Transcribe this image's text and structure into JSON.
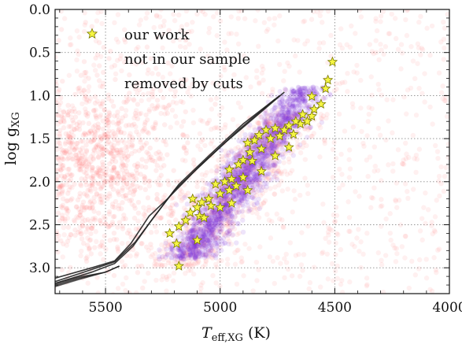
{
  "chart_data": {
    "type": "scatter",
    "title": "",
    "xlabel": {
      "main": "T",
      "sub": "eff,XG",
      "unit": "(K)"
    },
    "ylabel": {
      "main": "log g",
      "sub": "XG"
    },
    "xlim": [
      5720,
      4000
    ],
    "ylim": [
      3.3,
      0.0
    ],
    "x_inverted": true,
    "y_inverted": true,
    "grid": true,
    "grid_style": "dotted",
    "x_ticks": [
      5500,
      5000,
      4500,
      4000
    ],
    "y_ticks": [
      0.0,
      0.5,
      1.0,
      1.5,
      2.0,
      2.5,
      3.0
    ],
    "x_tick_labels": [
      "5500",
      "5000",
      "4500",
      "4000"
    ],
    "y_tick_labels": [
      "0.0",
      "0.5",
      "1.0",
      "1.5",
      "2.0",
      "2.5",
      "3.0"
    ],
    "legend_position": "top-left",
    "legend": [
      {
        "label": "our work",
        "marker": "star",
        "color": "#f5f542"
      },
      {
        "label": "not in our sample",
        "marker": "circle",
        "color": "#7b2fd6"
      },
      {
        "label": "removed by cuts",
        "marker": "circle",
        "color": "#ff6b6b"
      }
    ],
    "series": [
      {
        "name": "our work",
        "marker": "star",
        "color": "#f5f542",
        "edge_color": "#7a7a00",
        "points": [
          [
            4510,
            0.61
          ],
          [
            4530,
            0.82
          ],
          [
            4540,
            0.92
          ],
          [
            4600,
            1.01
          ],
          [
            4560,
            1.1
          ],
          [
            4590,
            1.16
          ],
          [
            4640,
            1.22
          ],
          [
            4600,
            1.24
          ],
          [
            4620,
            1.3
          ],
          [
            4650,
            1.33
          ],
          [
            4670,
            1.3
          ],
          [
            4700,
            1.35
          ],
          [
            4720,
            1.4
          ],
          [
            4760,
            1.38
          ],
          [
            4800,
            1.4
          ],
          [
            4830,
            1.46
          ],
          [
            4850,
            1.52
          ],
          [
            4880,
            1.55
          ],
          [
            4780,
            1.5
          ],
          [
            4740,
            1.47
          ],
          [
            4820,
            1.62
          ],
          [
            4870,
            1.66
          ],
          [
            4900,
            1.75
          ],
          [
            4920,
            1.8
          ],
          [
            4960,
            1.86
          ],
          [
            4820,
            1.88
          ],
          [
            4860,
            1.76
          ],
          [
            4900,
            1.95
          ],
          [
            4950,
            1.97
          ],
          [
            4980,
            2.0
          ],
          [
            5020,
            2.03
          ],
          [
            4960,
            2.1
          ],
          [
            5000,
            2.14
          ],
          [
            5050,
            2.2
          ],
          [
            5080,
            2.24
          ],
          [
            5040,
            2.28
          ],
          [
            5100,
            2.3
          ],
          [
            5130,
            2.36
          ],
          [
            5090,
            2.4
          ],
          [
            5150,
            2.45
          ],
          [
            5000,
            2.3
          ],
          [
            4950,
            2.25
          ],
          [
            5120,
            2.2
          ],
          [
            4880,
            2.1
          ],
          [
            4930,
            2.05
          ],
          [
            5070,
            2.42
          ],
          [
            5180,
            2.52
          ],
          [
            5220,
            2.6
          ],
          [
            5100,
            2.68
          ],
          [
            5190,
            2.72
          ],
          [
            5180,
            2.98
          ],
          [
            4760,
            1.7
          ],
          [
            4700,
            1.6
          ],
          [
            4680,
            1.45
          ]
        ]
      },
      {
        "name": "not in our sample",
        "marker": "circle",
        "color": "#7b2fd6",
        "density": "dense band along red giant branch, 1.0 to 2.9 dex"
      },
      {
        "name": "removed by cuts",
        "marker": "circle",
        "color": "#ff6b6b",
        "density": "diffuse background over full axis range"
      },
      {
        "name": "isochrones",
        "marker": "line",
        "color": "#222222",
        "lines": [
          [
            [
              5720,
              3.18
            ],
            [
              5560,
              3.05
            ],
            [
              5460,
              2.95
            ],
            [
              5380,
              2.75
            ],
            [
              5300,
              2.45
            ],
            [
              5200,
              2.1
            ],
            [
              5060,
              1.75
            ],
            [
              4920,
              1.4
            ],
            [
              4760,
              1.04
            ]
          ],
          [
            [
              5720,
              3.12
            ],
            [
              5560,
              3.0
            ],
            [
              5460,
              2.92
            ],
            [
              5390,
              2.72
            ],
            [
              5310,
              2.4
            ],
            [
              5230,
              2.2
            ],
            [
              5090,
              1.82
            ],
            [
              4980,
              1.55
            ],
            [
              4720,
              0.96
            ]
          ],
          [
            [
              5720,
              3.16
            ],
            [
              5560,
              3.02
            ],
            [
              5460,
              2.93
            ],
            [
              5370,
              2.7
            ],
            [
              5280,
              2.38
            ],
            [
              5180,
              2.03
            ],
            [
              5050,
              1.7
            ],
            [
              4900,
              1.33
            ],
            [
              4740,
              1.0
            ]
          ]
        ]
      }
    ]
  }
}
